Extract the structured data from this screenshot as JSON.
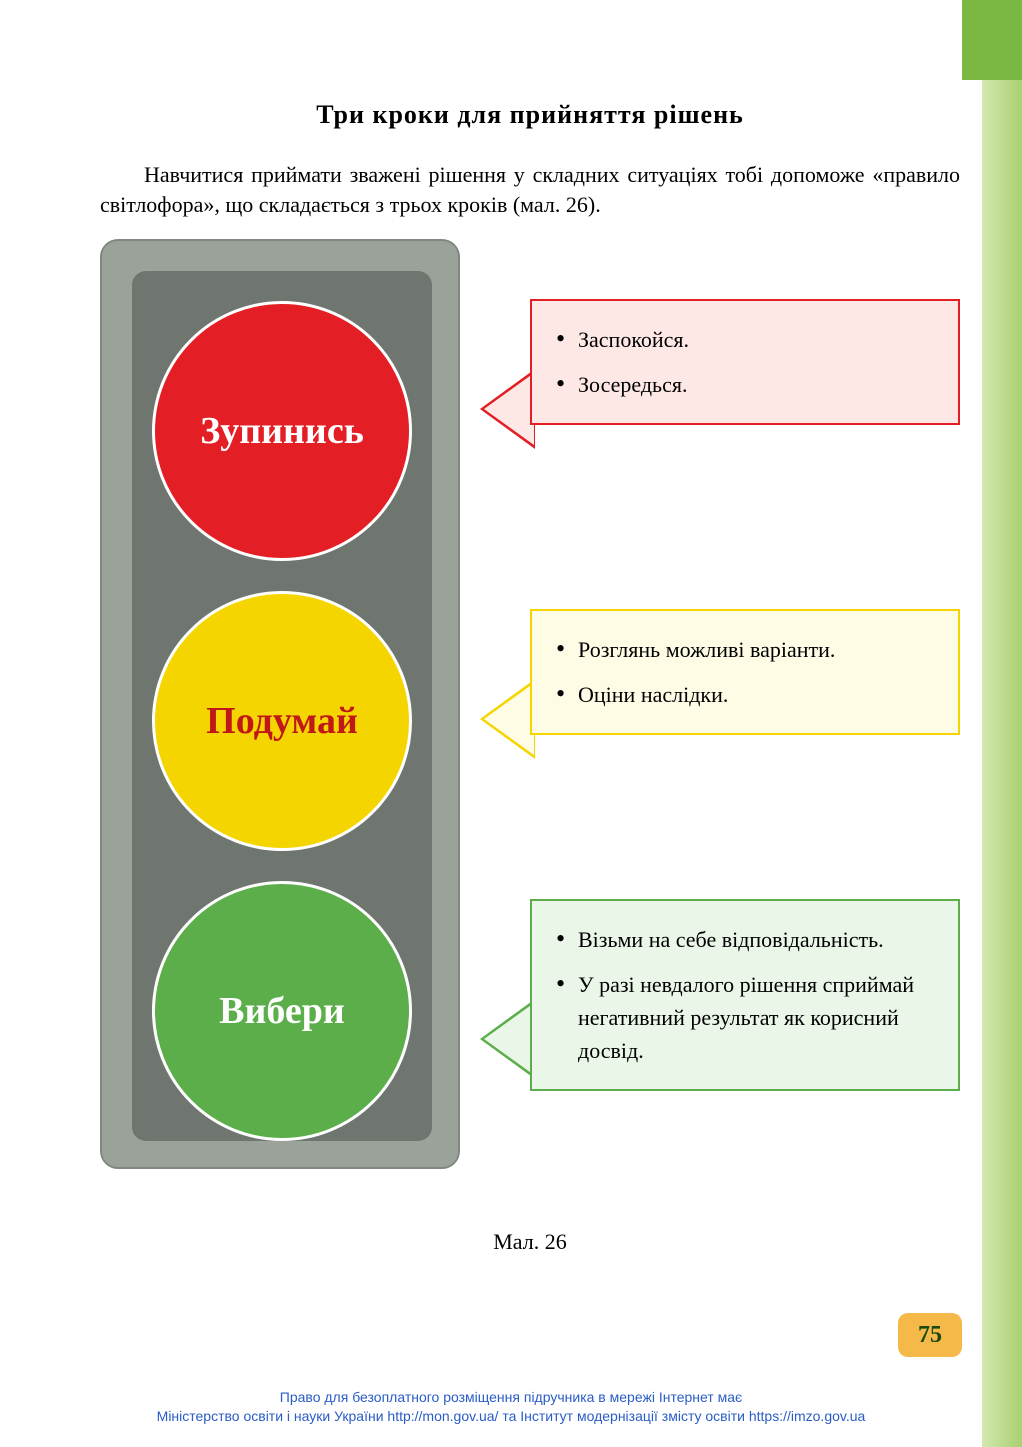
{
  "title": "Три кроки для прийняття рішень",
  "intro": "Навчитися приймати зважені рішення у складних ситуаціях тобі допоможе «правило світлофора», що складається з трьох кроків (мал. 26).",
  "traffic_light": {
    "body_color": "#9aa29a",
    "inner_color": "#6f7670",
    "lights": [
      {
        "label": "Зупинись",
        "fill": "#e31e24",
        "text_color": "#ffffff"
      },
      {
        "label": "Подумай",
        "fill": "#f5d500",
        "text_color": "#c01818"
      },
      {
        "label": "Вибери",
        "fill": "#5cae4a",
        "text_color": "#ffffff"
      }
    ]
  },
  "callouts": [
    {
      "border": "#e31e24",
      "bg": "#fde8e6",
      "items": [
        "Заспокойся.",
        "Зосередься."
      ]
    },
    {
      "border": "#f5d500",
      "bg": "#fffce6",
      "items": [
        "Розглянь можливі варіанти.",
        "Оціни наслідки."
      ]
    },
    {
      "border": "#5cae4a",
      "bg": "#eaf6e8",
      "items": [
        "Візьми на себе відповідальність.",
        "У разі невдалого рішення сприймай негативний результат як корисний досвід."
      ]
    }
  ],
  "caption": "Мал. 26",
  "page_number": "75",
  "footer_line1": "Право для безоплатного розміщення підручника в мережі Інтернет має",
  "footer_line2": "Міністерство освіти і науки України http://mon.gov.ua/ та Інститут модернізації змісту освіти https://imzo.gov.ua"
}
